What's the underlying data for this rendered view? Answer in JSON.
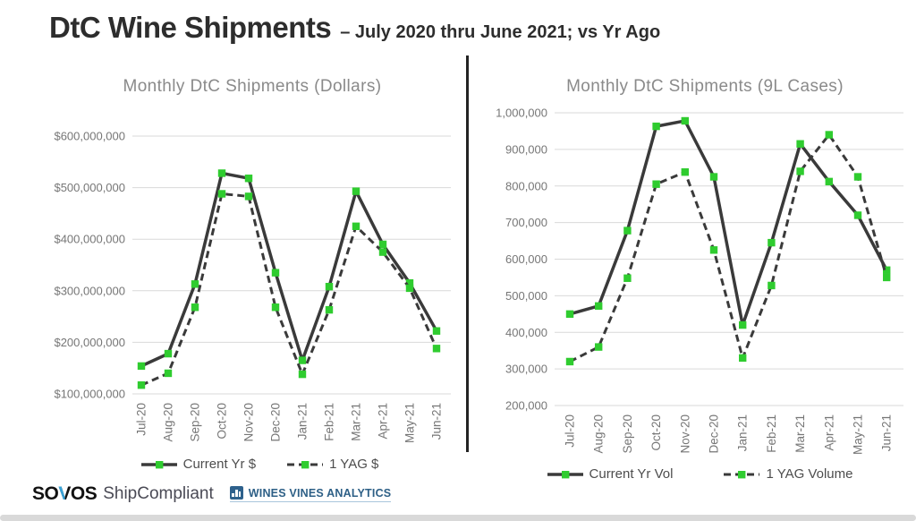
{
  "header": {
    "title": "DtC Wine Shipments",
    "subtitle": "– July 2020 thru June 2021; vs Yr Ago"
  },
  "colors": {
    "line": "#3a3a3a",
    "marker_green": "#2fcc2f",
    "grid": "#d9d9d9",
    "axis_text": "#767676",
    "chart_title_gray": "#8a8a8a",
    "legend_text": "#4d4d4d",
    "divider": "#232323",
    "sovos_black": "#121212",
    "sovos_blue": "#39a3d8",
    "shipcompliant_gray": "#4a4a55",
    "wva_navy": "#2d5f86",
    "bottom_bar_gray": "#d9d9d9"
  },
  "chart_data": [
    {
      "type": "line",
      "title": "Monthly DtC Shipments (Dollars)",
      "categories": [
        "Jul-20",
        "Aug-20",
        "Sep-20",
        "Oct-20",
        "Nov-20",
        "Dec-20",
        "Jan-21",
        "Feb-21",
        "Mar-21",
        "Apr-21",
        "May-21",
        "Jun-21"
      ],
      "series": [
        {
          "name": "Current Yr $",
          "style": "solid",
          "values": [
            154000000,
            178000000,
            313000000,
            528000000,
            518000000,
            335000000,
            165000000,
            308000000,
            493000000,
            390000000,
            315000000,
            222000000
          ]
        },
        {
          "name": "1 YAG $",
          "style": "dashed",
          "values": [
            117000000,
            140000000,
            268000000,
            488000000,
            483000000,
            268000000,
            138000000,
            263000000,
            425000000,
            375000000,
            305000000,
            188000000
          ]
        }
      ],
      "ylim": [
        100000000,
        600000000
      ],
      "yticks": [
        {
          "value": 600000000,
          "label": "$600,000,000"
        },
        {
          "value": 500000000,
          "label": "$500,000,000"
        },
        {
          "value": 400000000,
          "label": "$400,000,000"
        },
        {
          "value": 300000000,
          "label": "$300,000,000"
        },
        {
          "value": 200000000,
          "label": "$200,000,000"
        },
        {
          "value": 100000000,
          "label": "$100,000,000"
        }
      ],
      "grid": true,
      "legend_position": "bottom"
    },
    {
      "type": "line",
      "title": "Monthly DtC Shipments (9L Cases)",
      "categories": [
        "Jul-20",
        "Aug-20",
        "Sep-20",
        "Oct-20",
        "Nov-20",
        "Dec-20",
        "Jan-21",
        "Feb-21",
        "Mar-21",
        "Apr-21",
        "May-21",
        "Jun-21"
      ],
      "series": [
        {
          "name": "Current Yr Vol",
          "style": "solid",
          "values": [
            450000,
            472000,
            678000,
            963000,
            978000,
            825000,
            420000,
            645000,
            915000,
            812000,
            720000,
            570000
          ]
        },
        {
          "name": "1 YAG Volume",
          "style": "dashed",
          "values": [
            320000,
            360000,
            548000,
            805000,
            838000,
            625000,
            330000,
            528000,
            840000,
            940000,
            825000,
            550000
          ]
        }
      ],
      "ylim": [
        200000,
        1000000
      ],
      "yticks": [
        {
          "value": 1000000,
          "label": "1,000,000"
        },
        {
          "value": 900000,
          "label": "900,000"
        },
        {
          "value": 800000,
          "label": "800,000"
        },
        {
          "value": 700000,
          "label": "700,000"
        },
        {
          "value": 600000,
          "label": "600,000"
        },
        {
          "value": 500000,
          "label": "500,000"
        },
        {
          "value": 400000,
          "label": "400,000"
        },
        {
          "value": 300000,
          "label": "300,000"
        },
        {
          "value": 200000,
          "label": "200,000"
        }
      ],
      "grid": true,
      "legend_position": "bottom"
    }
  ],
  "footer": {
    "sovos": {
      "part1": "SO",
      "v": "V",
      "part2": "OS"
    },
    "shipcompliant": "ShipCompliant",
    "wva_icon": "bar-chart-icon",
    "wines_vines": "WINES VINES ANALYTICS"
  }
}
